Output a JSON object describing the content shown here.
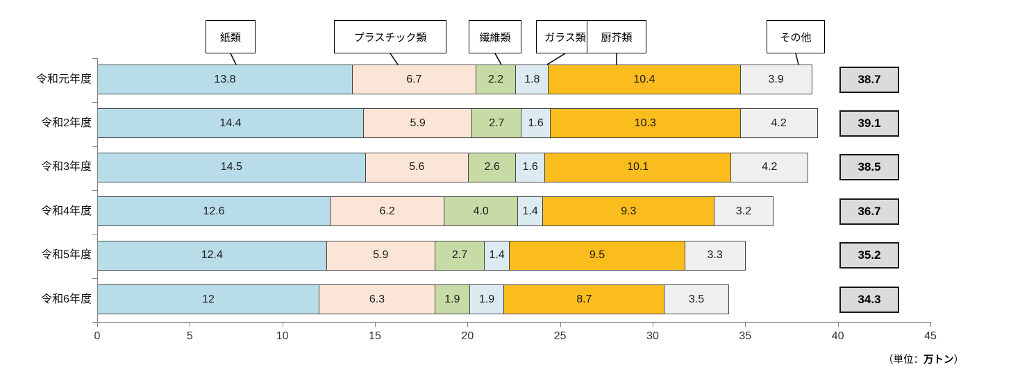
{
  "chart_data": {
    "type": "bar",
    "orientation": "horizontal-stacked",
    "title": "",
    "unit_note": {
      "prefix": "（単位：",
      "bold": "万トン",
      "suffix": "）"
    },
    "categories": [
      "令和元年度",
      "令和2年度",
      "令和3年度",
      "令和4年度",
      "令和5年度",
      "令和6年度"
    ],
    "series": [
      {
        "name": "紙類",
        "color": "#B8DDE8",
        "values": [
          13.8,
          14.4,
          14.5,
          12.6,
          12.4,
          12.0
        ],
        "labels": [
          "13.8",
          "14.4",
          "14.5",
          "12.6",
          "12.4",
          "12"
        ]
      },
      {
        "name": "プラスチック類",
        "color": "#FBE5D6",
        "values": [
          6.7,
          5.9,
          5.6,
          6.2,
          5.9,
          6.3
        ],
        "labels": [
          "6.7",
          "5.9",
          "5.6",
          "6.2",
          "5.9",
          "6.3"
        ]
      },
      {
        "name": "繊維類",
        "color": "#C8DBA6",
        "values": [
          2.2,
          2.7,
          2.6,
          4.0,
          2.7,
          1.9
        ],
        "labels": [
          "2.2",
          "2.7",
          "2.6",
          "4.0",
          "2.7",
          "1.9"
        ]
      },
      {
        "name": "ガラス類",
        "color": "#DCEBF2",
        "values": [
          1.8,
          1.6,
          1.6,
          1.4,
          1.4,
          1.9
        ],
        "labels": [
          "1.8",
          "1.6",
          "1.6",
          "1.4",
          "1.4",
          "1.9"
        ]
      },
      {
        "name": "厨芥類",
        "color": "#FBBD1D",
        "values": [
          10.4,
          10.3,
          10.1,
          9.3,
          9.5,
          8.7
        ],
        "labels": [
          "10.4",
          "10.3",
          "10.1",
          "9.3",
          "9.5",
          "8.7"
        ]
      },
      {
        "name": "その他",
        "color": "#EFEFEF",
        "values": [
          3.9,
          4.2,
          4.2,
          3.2,
          3.3,
          3.5
        ],
        "labels": [
          "3.9",
          "4.2",
          "4.2",
          "3.2",
          "3.3",
          "3.5"
        ]
      }
    ],
    "totals": [
      "38.7",
      "39.1",
      "38.5",
      "36.7",
      "35.2",
      "34.3"
    ],
    "xlim": [
      0,
      45
    ],
    "x_ticks": [
      "0",
      "5",
      "10",
      "15",
      "20",
      "25",
      "30",
      "35",
      "40",
      "45"
    ],
    "legend_position": "top-callouts",
    "grid": false
  }
}
